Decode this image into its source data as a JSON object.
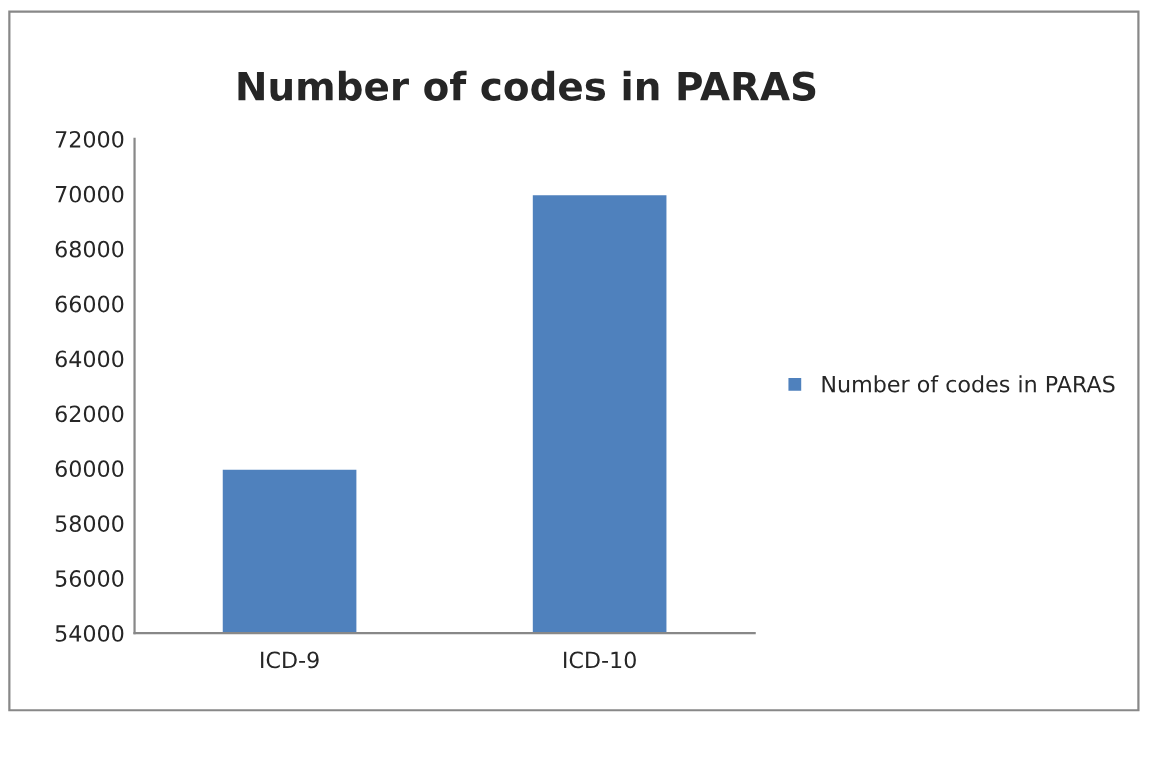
{
  "chart_data": {
    "type": "bar",
    "title": "Number of codes in PARAS",
    "categories": [
      "ICD-9",
      "ICD-10"
    ],
    "series": [
      {
        "name": "Number of codes in PARAS",
        "color": "#4f81bd",
        "values": [
          60000,
          70000
        ]
      }
    ],
    "ylim": [
      54000,
      72000
    ],
    "yticks": [
      54000,
      56000,
      58000,
      60000,
      62000,
      64000,
      66000,
      68000,
      70000,
      72000
    ],
    "grid": false,
    "legend": "right"
  }
}
